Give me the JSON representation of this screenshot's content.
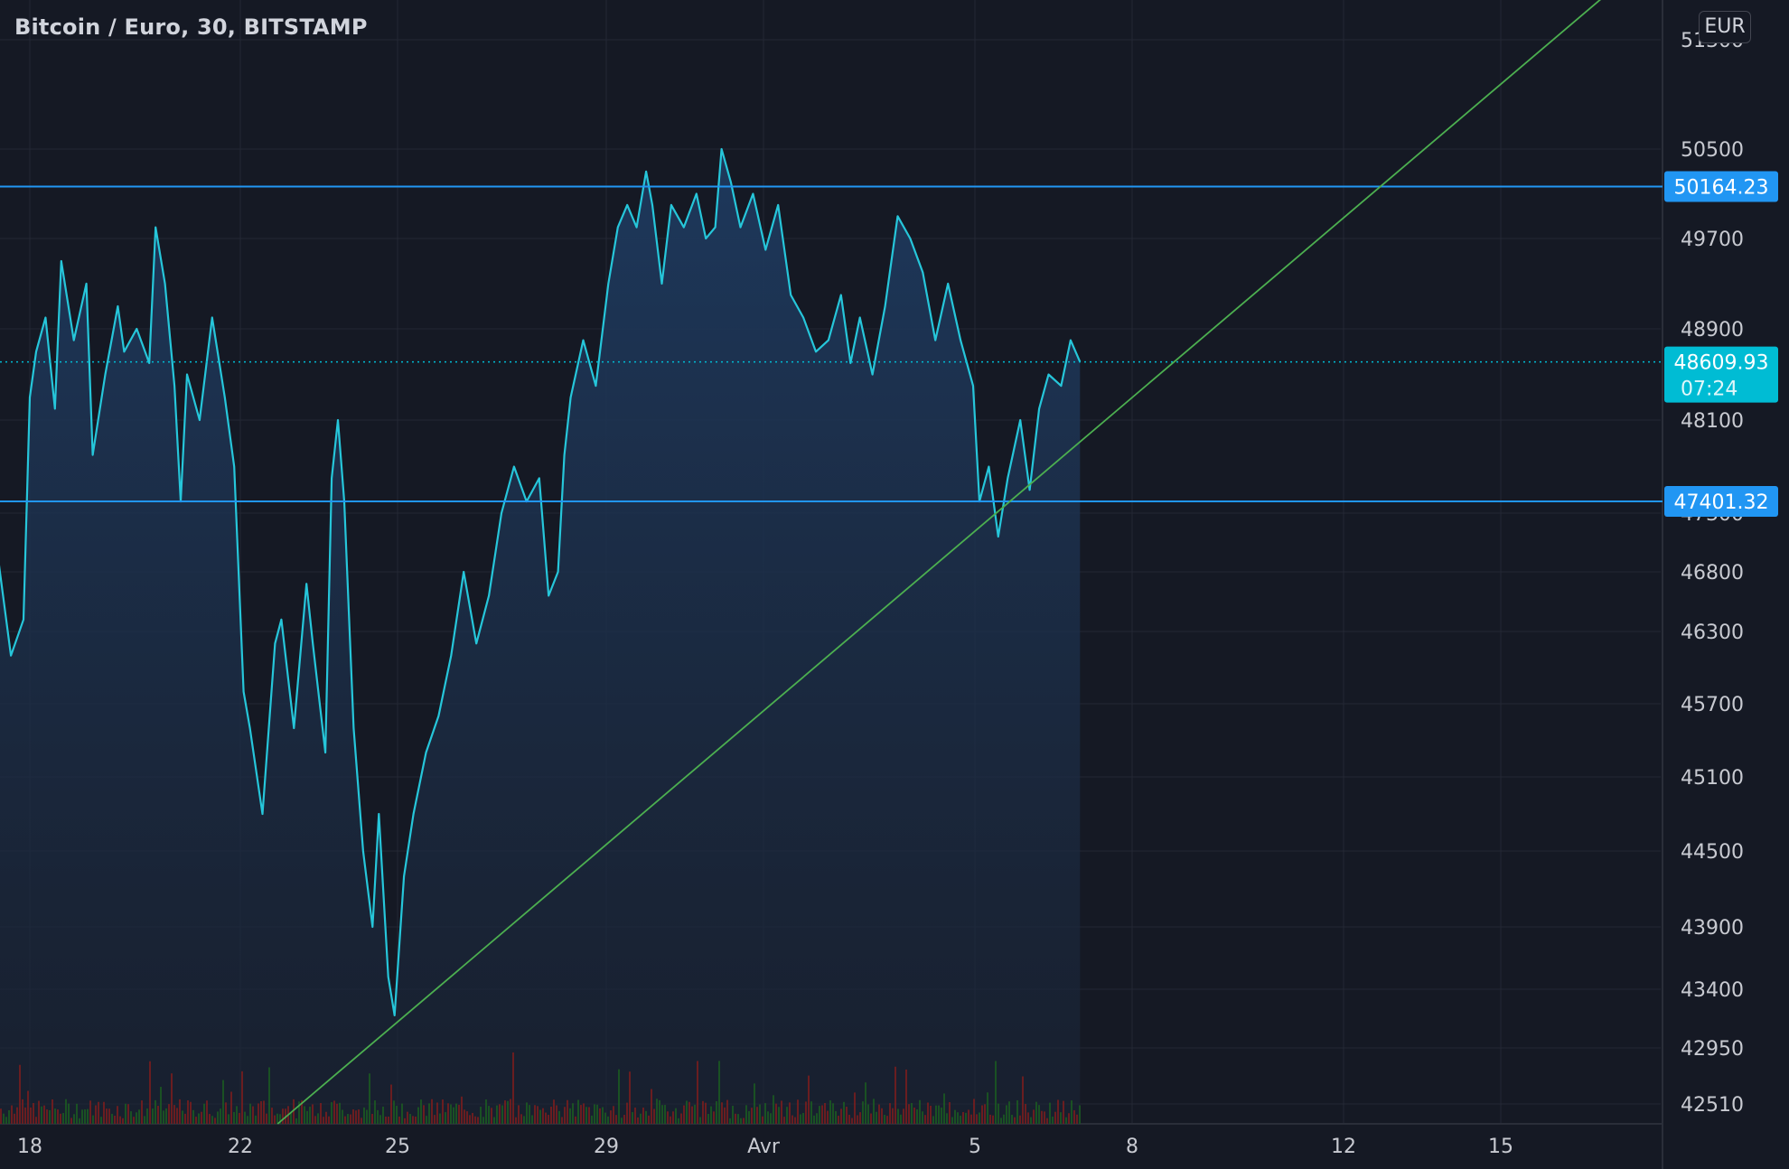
{
  "title": "Bitcoin / Euro, 30, BITSTAMP",
  "currency_button": "EUR",
  "colors": {
    "background": "#151924",
    "grid": "#232734",
    "price_line": "#26c6da",
    "hline": "#2196f3",
    "trendline": "#4caf50",
    "last_price_tag": "#00bcd4",
    "volume_up": "#1b5e20",
    "volume_down": "#7f1d1d"
  },
  "chart_data": {
    "type": "area",
    "instrument": "Bitcoin / Euro",
    "timeframe": "30",
    "exchange": "BITSTAMP",
    "x_tick_labels": [
      "18",
      "22",
      "25",
      "29",
      "Avr",
      "5",
      "8",
      "12",
      "15"
    ],
    "y_tick_labels": [
      51300,
      50500,
      49700,
      48900,
      48100,
      47300,
      46800,
      46300,
      45700,
      45100,
      44500,
      43900,
      43400,
      42950,
      42510
    ],
    "series": [
      {
        "values": [
          [
            0,
            46900
          ],
          [
            0.4,
            46100
          ],
          [
            0.8,
            46400
          ],
          [
            1.0,
            48300
          ],
          [
            1.2,
            48700
          ],
          [
            1.5,
            49000
          ],
          [
            1.8,
            48200
          ],
          [
            2.0,
            49500
          ],
          [
            2.4,
            48800
          ],
          [
            2.8,
            49300
          ],
          [
            3.0,
            47800
          ],
          [
            3.4,
            48500
          ],
          [
            3.8,
            49100
          ],
          [
            4.0,
            48700
          ],
          [
            4.4,
            48900
          ],
          [
            4.8,
            48600
          ],
          [
            5.0,
            49800
          ],
          [
            5.3,
            49300
          ],
          [
            5.6,
            48400
          ],
          [
            5.8,
            47400
          ],
          [
            6.0,
            48500
          ],
          [
            6.4,
            48100
          ],
          [
            6.8,
            49000
          ],
          [
            7.2,
            48300
          ],
          [
            7.5,
            47700
          ],
          [
            7.8,
            45800
          ],
          [
            8.0,
            45500
          ],
          [
            8.4,
            44800
          ],
          [
            8.8,
            46200
          ],
          [
            9.0,
            46400
          ],
          [
            9.4,
            45500
          ],
          [
            9.8,
            46700
          ],
          [
            10.0,
            46200
          ],
          [
            10.4,
            45300
          ],
          [
            10.6,
            47600
          ],
          [
            10.8,
            48100
          ],
          [
            11.0,
            47400
          ],
          [
            11.3,
            45500
          ],
          [
            11.6,
            44500
          ],
          [
            11.9,
            43900
          ],
          [
            12.1,
            44800
          ],
          [
            12.4,
            43500
          ],
          [
            12.6,
            43200
          ],
          [
            12.9,
            44300
          ],
          [
            13.2,
            44800
          ],
          [
            13.6,
            45300
          ],
          [
            14.0,
            45600
          ],
          [
            14.4,
            46100
          ],
          [
            14.8,
            46800
          ],
          [
            15.2,
            46200
          ],
          [
            15.6,
            46600
          ],
          [
            16.0,
            47300
          ],
          [
            16.4,
            47700
          ],
          [
            16.8,
            47400
          ],
          [
            17.2,
            47600
          ],
          [
            17.5,
            46600
          ],
          [
            17.8,
            46800
          ],
          [
            18.0,
            47800
          ],
          [
            18.2,
            48300
          ],
          [
            18.6,
            48800
          ],
          [
            19.0,
            48400
          ],
          [
            19.4,
            49300
          ],
          [
            19.7,
            49800
          ],
          [
            20.0,
            50000
          ],
          [
            20.3,
            49800
          ],
          [
            20.6,
            50300
          ],
          [
            20.8,
            50000
          ],
          [
            21.1,
            49300
          ],
          [
            21.4,
            50000
          ],
          [
            21.8,
            49800
          ],
          [
            22.2,
            50100
          ],
          [
            22.5,
            49700
          ],
          [
            22.8,
            49800
          ],
          [
            23.0,
            50500
          ],
          [
            23.3,
            50200
          ],
          [
            23.6,
            49800
          ],
          [
            24.0,
            50100
          ],
          [
            24.4,
            49600
          ],
          [
            24.8,
            50000
          ],
          [
            25.2,
            49200
          ],
          [
            25.6,
            49000
          ],
          [
            26.0,
            48700
          ],
          [
            26.4,
            48800
          ],
          [
            26.8,
            49200
          ],
          [
            27.1,
            48600
          ],
          [
            27.4,
            49000
          ],
          [
            27.8,
            48500
          ],
          [
            28.2,
            49100
          ],
          [
            28.6,
            49900
          ],
          [
            29.0,
            49700
          ],
          [
            29.4,
            49400
          ],
          [
            29.8,
            48800
          ],
          [
            30.2,
            49300
          ],
          [
            30.6,
            48800
          ],
          [
            31.0,
            48400
          ],
          [
            31.2,
            47400
          ],
          [
            31.5,
            47700
          ],
          [
            31.8,
            47100
          ],
          [
            32.1,
            47600
          ],
          [
            32.5,
            48100
          ],
          [
            32.8,
            47500
          ],
          [
            33.1,
            48200
          ],
          [
            33.4,
            48500
          ],
          [
            33.8,
            48400
          ],
          [
            34.1,
            48800
          ],
          [
            34.4,
            48609.93
          ]
        ]
      }
    ],
    "horizontal_lines": [
      {
        "price": 50164.23,
        "label": "50164.23"
      },
      {
        "price": 47401.32,
        "label": "47401.32"
      }
    ],
    "last_price": {
      "value": "48609.93",
      "countdown": "07:24"
    },
    "trendline": {
      "p1": [
        12.6,
        43130
      ],
      "p2": [
        38.5,
        48870
      ]
    },
    "grid": true,
    "legend": "none"
  }
}
